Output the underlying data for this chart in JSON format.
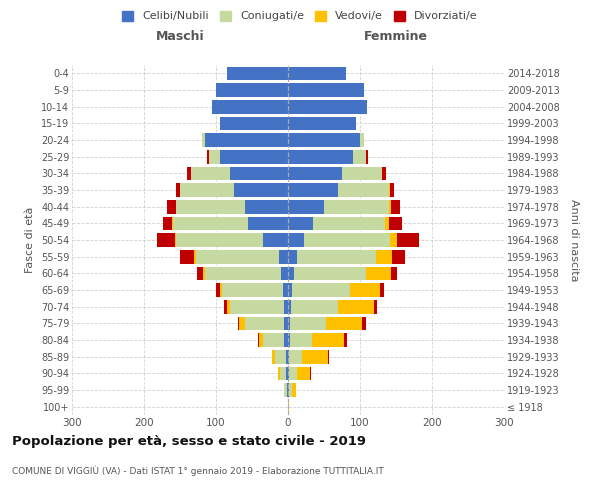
{
  "age_groups": [
    "100+",
    "95-99",
    "90-94",
    "85-89",
    "80-84",
    "75-79",
    "70-74",
    "65-69",
    "60-64",
    "55-59",
    "50-54",
    "45-49",
    "40-44",
    "35-39",
    "30-34",
    "25-29",
    "20-24",
    "15-19",
    "10-14",
    "5-9",
    "0-4"
  ],
  "birth_years": [
    "≤ 1918",
    "1919-1923",
    "1924-1928",
    "1929-1933",
    "1934-1938",
    "1939-1943",
    "1944-1948",
    "1949-1953",
    "1954-1958",
    "1959-1963",
    "1964-1968",
    "1969-1973",
    "1974-1978",
    "1979-1983",
    "1984-1988",
    "1989-1993",
    "1994-1998",
    "1999-2003",
    "2004-2008",
    "2009-2013",
    "2014-2018"
  ],
  "males": {
    "celibi": [
      0,
      2,
      3,
      3,
      5,
      5,
      5,
      7,
      10,
      13,
      35,
      55,
      60,
      75,
      80,
      95,
      115,
      95,
      105,
      100,
      85
    ],
    "coniugati": [
      0,
      3,
      8,
      15,
      30,
      55,
      75,
      85,
      105,
      115,
      120,
      105,
      95,
      75,
      55,
      15,
      5,
      0,
      0,
      0,
      0
    ],
    "vedovi": [
      0,
      1,
      3,
      4,
      5,
      8,
      5,
      3,
      3,
      2,
      2,
      1,
      1,
      0,
      0,
      0,
      0,
      0,
      0,
      0,
      0
    ],
    "divorziati": [
      0,
      0,
      0,
      0,
      1,
      2,
      4,
      5,
      8,
      20,
      25,
      12,
      12,
      5,
      5,
      2,
      0,
      0,
      0,
      0,
      0
    ]
  },
  "females": {
    "nubili": [
      0,
      2,
      2,
      2,
      3,
      3,
      4,
      6,
      8,
      12,
      22,
      35,
      50,
      70,
      75,
      90,
      100,
      95,
      110,
      105,
      80
    ],
    "coniugate": [
      0,
      4,
      10,
      18,
      30,
      50,
      65,
      80,
      100,
      110,
      120,
      100,
      90,
      70,
      55,
      18,
      5,
      0,
      0,
      0,
      0
    ],
    "vedove": [
      1,
      5,
      18,
      35,
      45,
      50,
      50,
      42,
      35,
      22,
      10,
      5,
      3,
      2,
      1,
      1,
      0,
      0,
      0,
      0,
      0
    ],
    "divorziate": [
      0,
      0,
      2,
      2,
      4,
      5,
      5,
      5,
      8,
      18,
      30,
      18,
      12,
      5,
      5,
      2,
      0,
      0,
      0,
      0,
      0
    ]
  },
  "colors": {
    "celibi": "#4472c4",
    "coniugati": "#c5d9a0",
    "vedovi": "#ffc000",
    "divorziati": "#c00000"
  },
  "title": "Popolazione per età, sesso e stato civile - 2019",
  "subtitle": "COMUNE DI VIGGIÙ (VA) - Dati ISTAT 1° gennaio 2019 - Elaborazione TUTTITALIA.IT",
  "ylabel_left": "Fasce di età",
  "ylabel_right": "Anni di nascita",
  "xlabel_left": "Maschi",
  "xlabel_right": "Femmine",
  "xlim": 300,
  "legend_labels": [
    "Celibi/Nubili",
    "Coniugati/e",
    "Vedovi/e",
    "Divorziati/e"
  ],
  "bg_color": "#ffffff",
  "grid_color": "#cccccc"
}
